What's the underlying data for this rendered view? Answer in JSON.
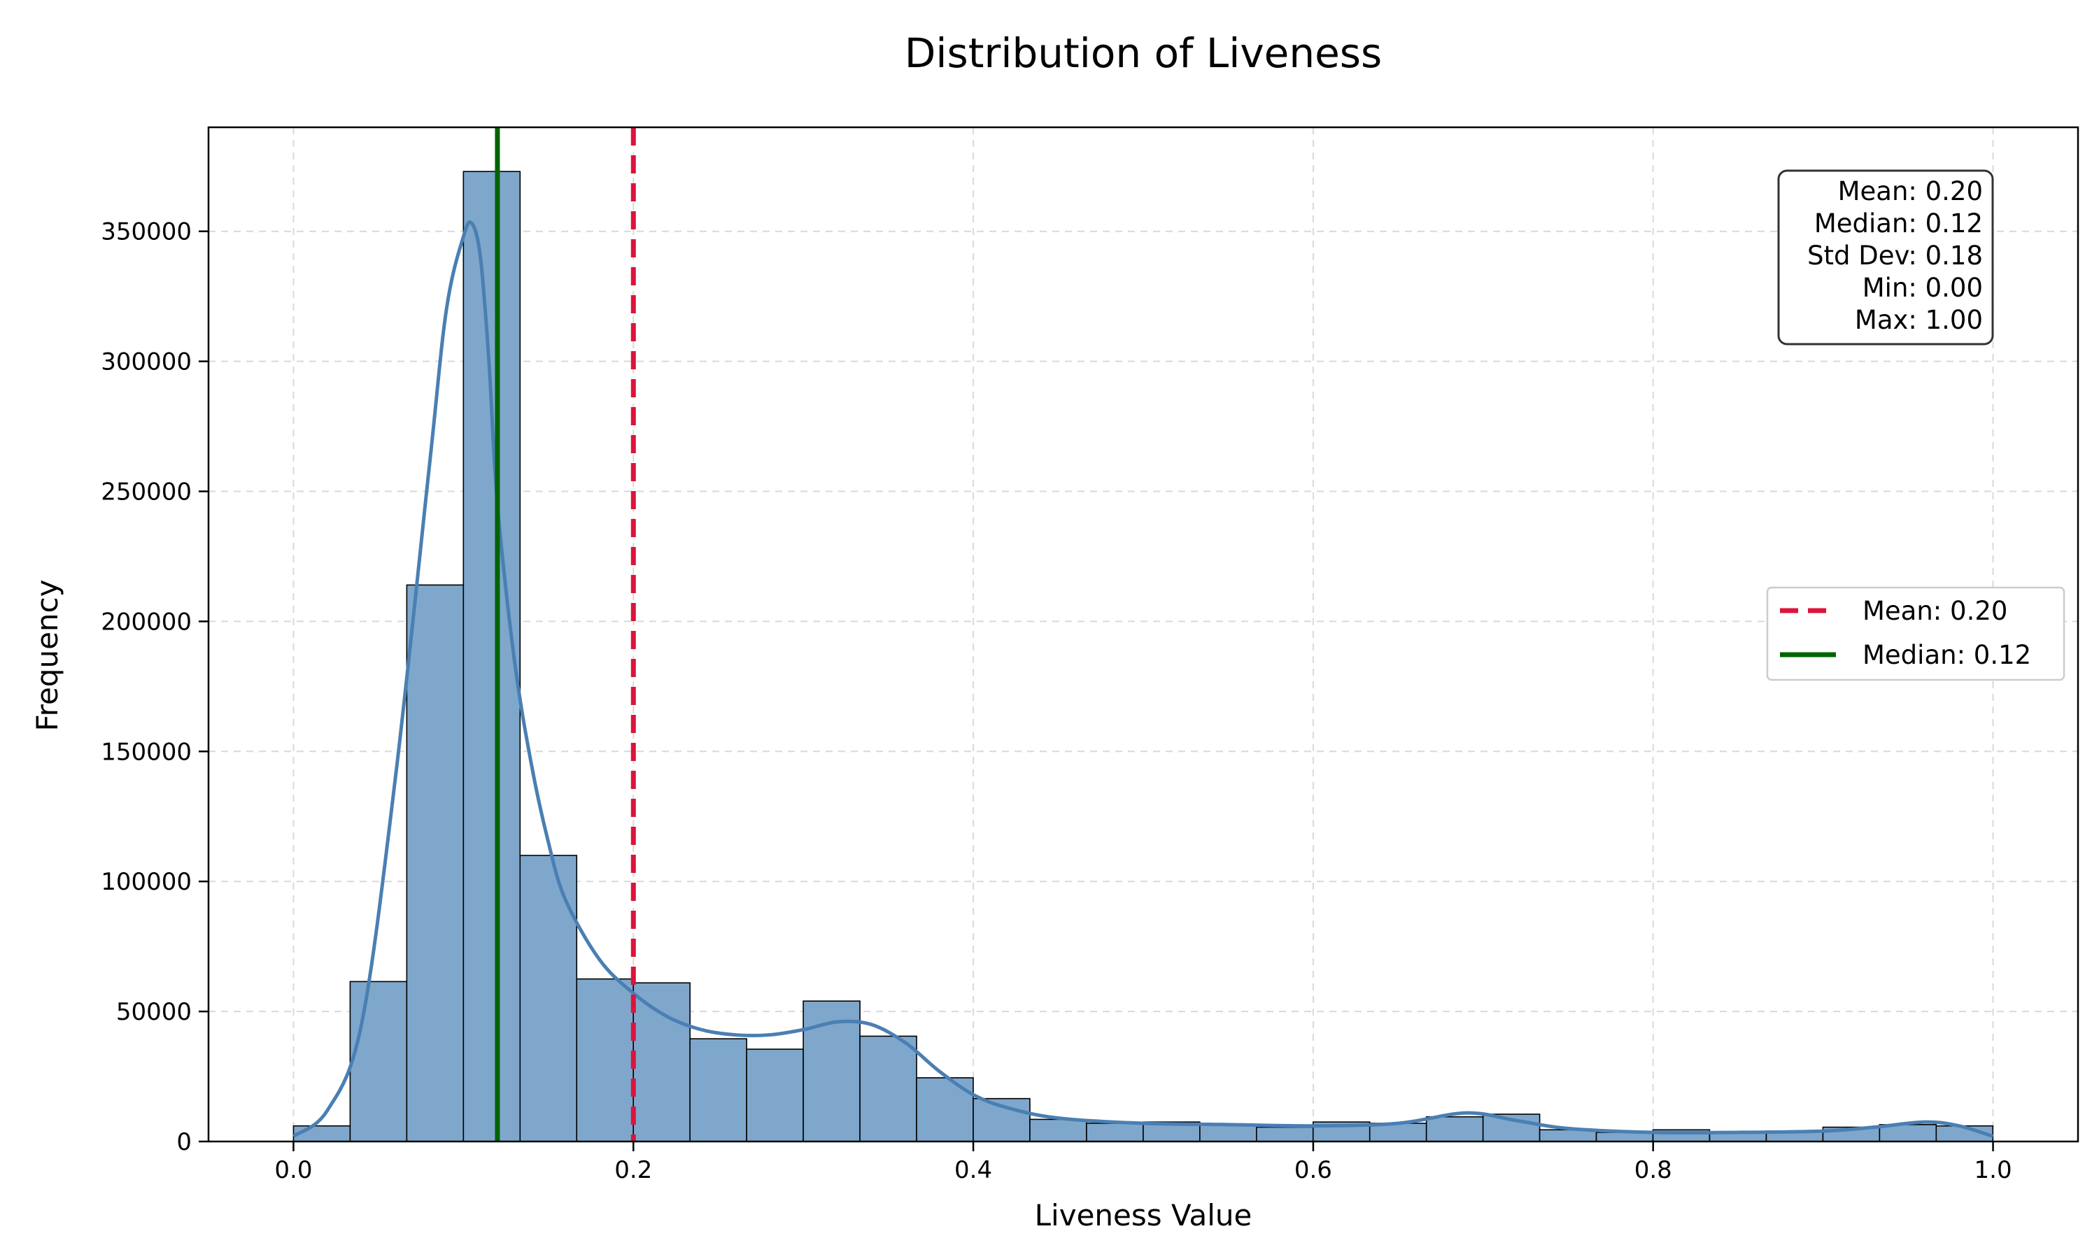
{
  "chart_data": {
    "type": "bar",
    "title": "Distribution of Liveness",
    "xlabel": "Liveness Value",
    "ylabel": "Frequency",
    "xlim": [
      -0.05,
      1.05
    ],
    "ylim": [
      0,
      390000
    ],
    "xticks": [
      0.0,
      0.2,
      0.4,
      0.6,
      0.8,
      1.0
    ],
    "xtick_labels": [
      "0.0",
      "0.2",
      "0.4",
      "0.6",
      "0.8",
      "1.0"
    ],
    "yticks": [
      0,
      50000,
      100000,
      150000,
      200000,
      250000,
      300000,
      350000
    ],
    "ytick_labels": [
      "0",
      "50000",
      "100000",
      "150000",
      "200000",
      "250000",
      "300000",
      "350000"
    ],
    "grid": true,
    "bin_start": 0.0,
    "bin_width": 0.03333,
    "counts": [
      6000,
      61500,
      214000,
      373000,
      110000,
      62500,
      61000,
      39500,
      35500,
      54000,
      40500,
      24500,
      16500,
      8500,
      7000,
      7500,
      6500,
      5500,
      7500,
      7000,
      9500,
      10500,
      4500,
      3500,
      4500,
      3500,
      4000,
      5500,
      6500,
      6000
    ],
    "kde": {
      "name": "",
      "x": [
        0.0,
        0.02,
        0.04,
        0.06,
        0.08,
        0.09,
        0.1,
        0.105,
        0.11,
        0.115,
        0.12,
        0.13,
        0.14,
        0.15,
        0.16,
        0.18,
        0.2,
        0.22,
        0.24,
        0.26,
        0.28,
        0.3,
        0.32,
        0.34,
        0.36,
        0.38,
        0.4,
        0.42,
        0.45,
        0.5,
        0.55,
        0.6,
        0.65,
        0.69,
        0.72,
        0.75,
        0.8,
        0.85,
        0.9,
        0.93,
        0.96,
        0.98,
        1.0
      ],
      "y": [
        2000,
        12000,
        45000,
        140000,
        260000,
        320000,
        348000,
        353000,
        340000,
        300000,
        245000,
        185000,
        145000,
        115000,
        93000,
        70000,
        57000,
        48000,
        43000,
        41000,
        41000,
        43000,
        46000,
        45000,
        38000,
        27000,
        18000,
        13000,
        9000,
        7000,
        6500,
        6000,
        7000,
        11000,
        8000,
        5000,
        3500,
        3500,
        4000,
        5500,
        7500,
        6000,
        2000
      ]
    },
    "mean": 0.2,
    "median": 0.12,
    "legend": {
      "placement": "center-right",
      "entries": [
        "Mean: 0.20",
        "Median: 0.12"
      ]
    },
    "stats_box": {
      "placement": "top-right",
      "lines": [
        "Mean: 0.20",
        "Median: 0.12",
        "Std Dev: 0.18",
        "Min: 0.00",
        "Max: 1.00"
      ]
    },
    "colors": {
      "bar_fill": "#7fa7cc",
      "bar_edge": "#000000",
      "kde": "#4a7fb3",
      "mean_line": "#dc143c",
      "median_line": "#006400",
      "grid": "#d9d9d9"
    }
  }
}
